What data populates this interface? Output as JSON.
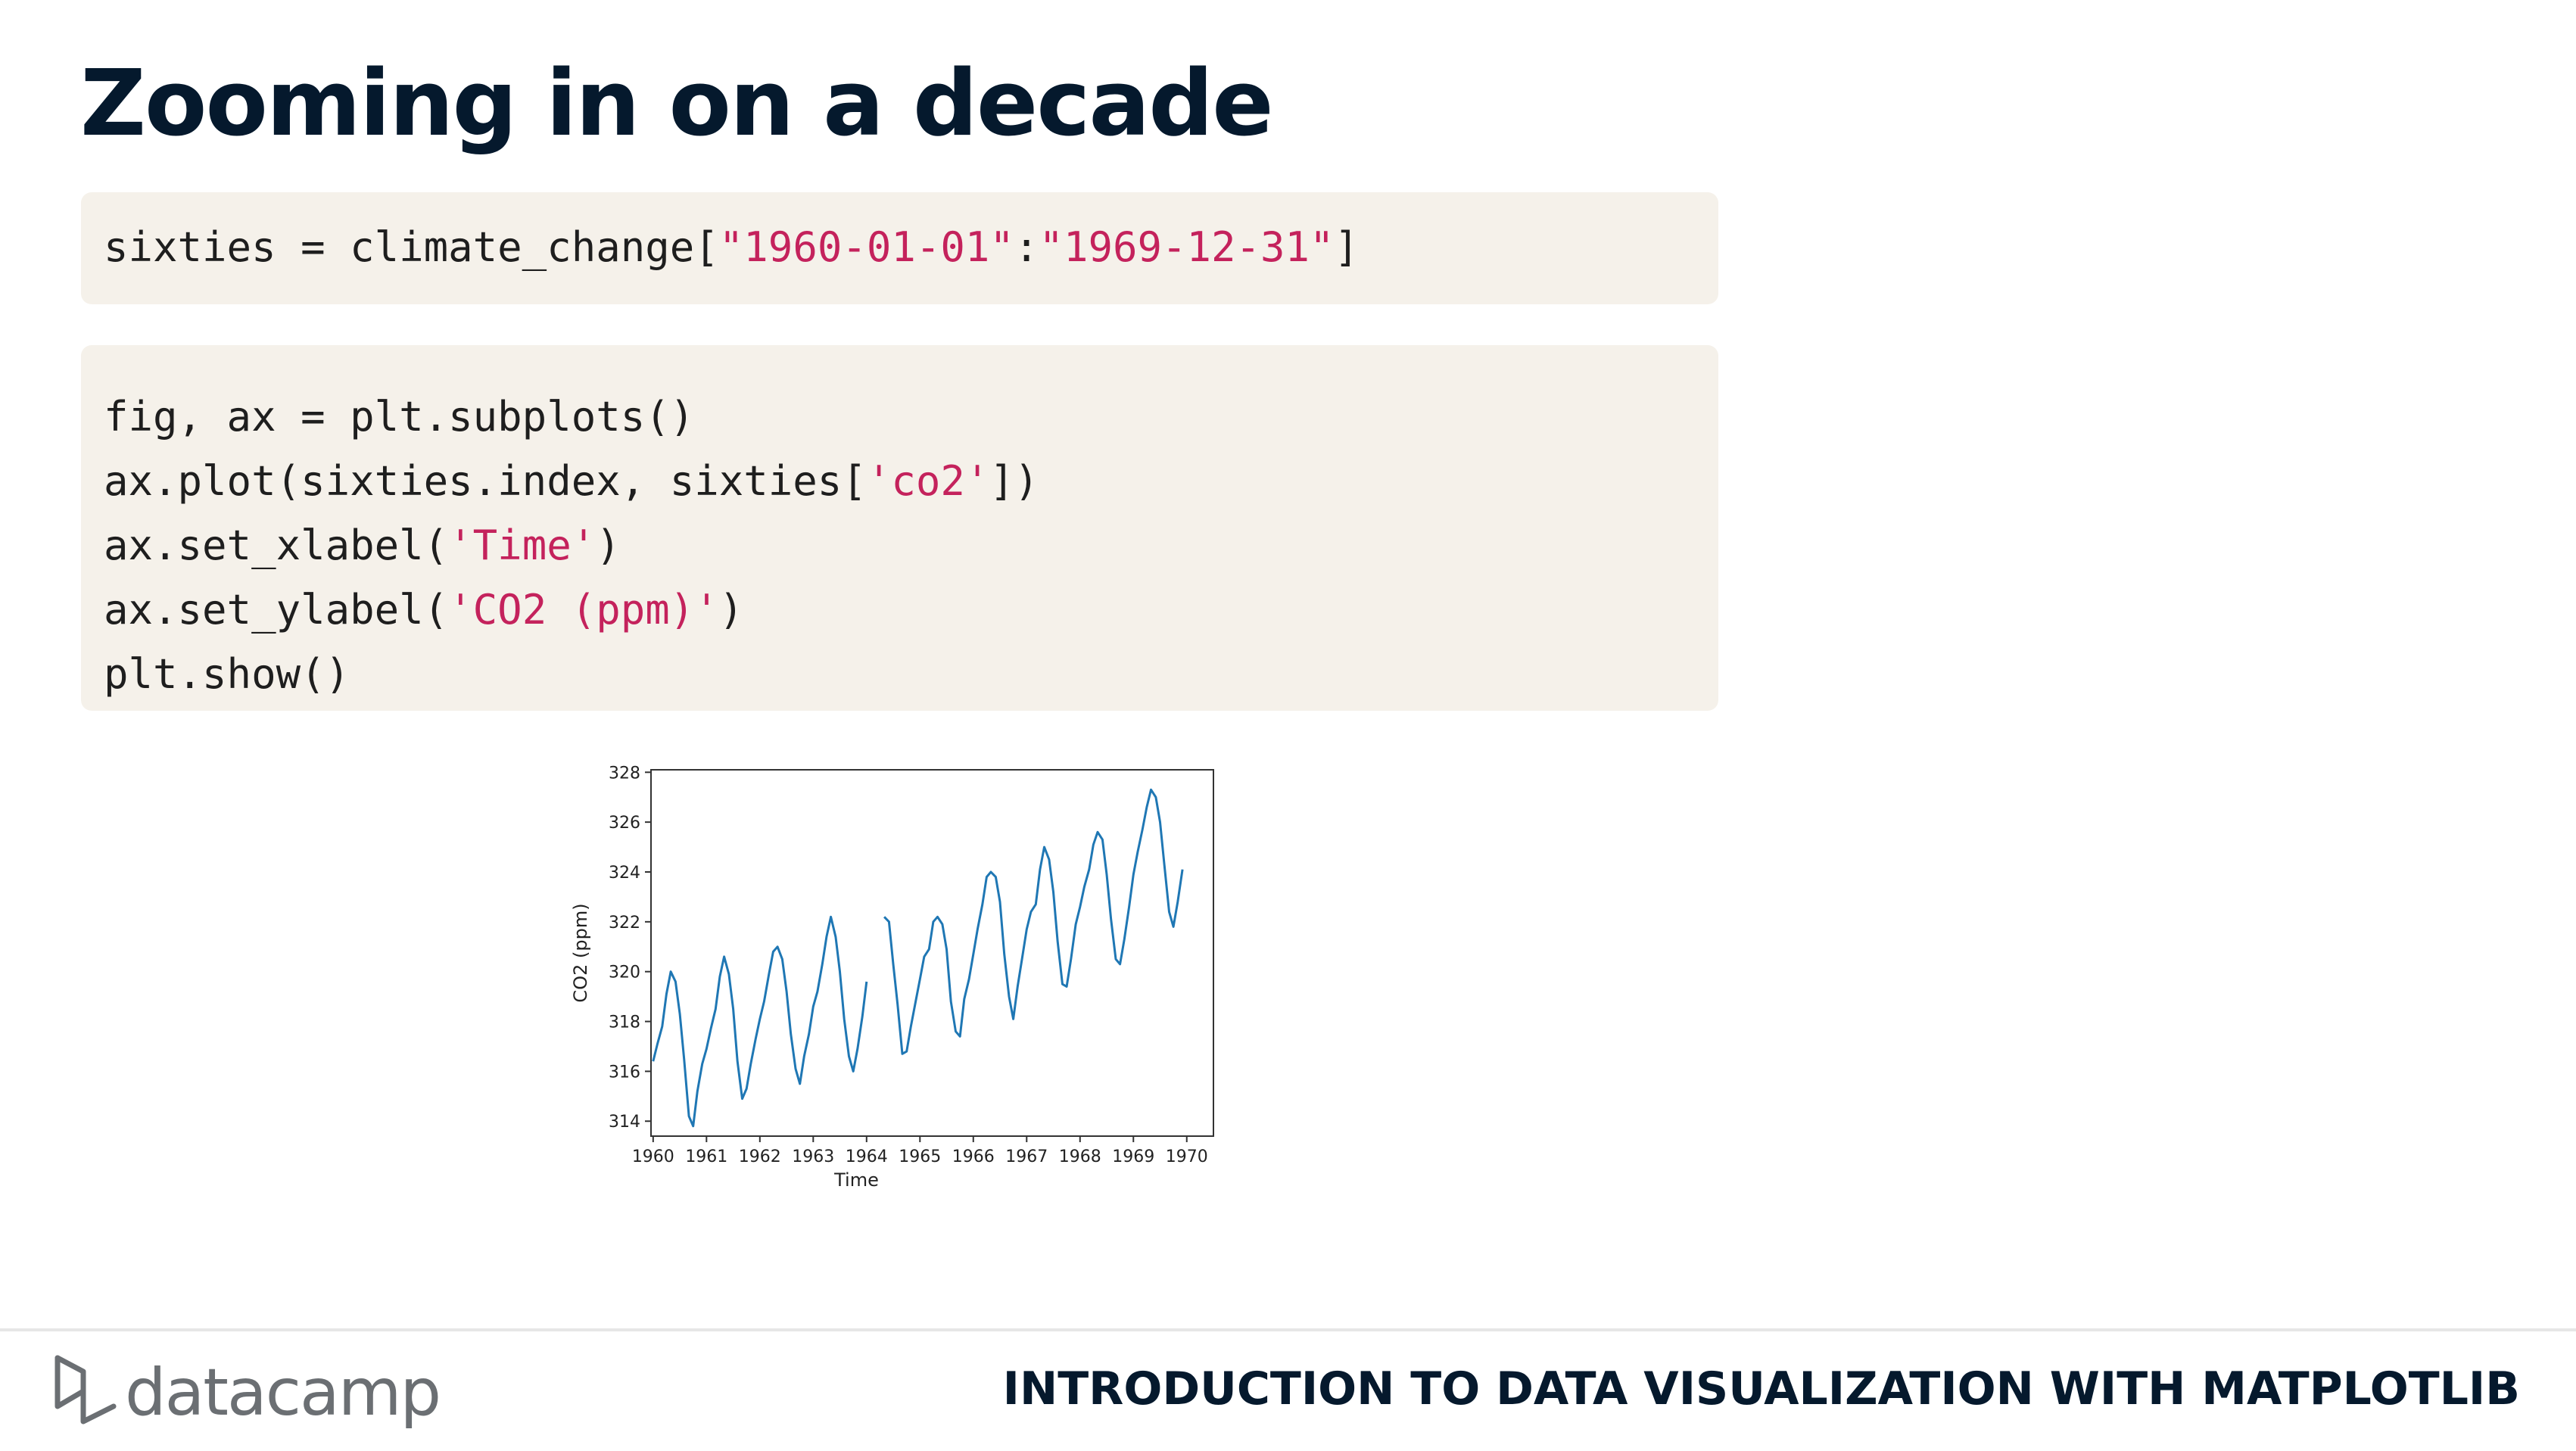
{
  "slide": {
    "title": "Zooming in on a decade",
    "code1": [
      [
        {
          "t": "sixties = climate_change["
        },
        {
          "t": "\"1960-01-01\"",
          "s": 1
        },
        {
          "t": ":"
        },
        {
          "t": "\"1969-12-31\"",
          "s": 1
        },
        {
          "t": "]"
        }
      ]
    ],
    "code2": [
      [
        {
          "t": "fig, ax = plt.subplots()"
        }
      ],
      [
        {
          "t": "ax.plot(sixties.index, sixties["
        },
        {
          "t": "'co2'",
          "s": 1
        },
        {
          "t": "])"
        }
      ],
      [
        {
          "t": "ax.set_xlabel("
        },
        {
          "t": "'Time'",
          "s": 1
        },
        {
          "t": ")"
        }
      ],
      [
        {
          "t": "ax.set_ylabel("
        },
        {
          "t": "'CO2 (ppm)'",
          "s": 1
        },
        {
          "t": ")"
        }
      ],
      [
        {
          "t": "plt.show()"
        }
      ]
    ]
  },
  "footer": {
    "brand": "datacamp",
    "course": "INTRODUCTION TO DATA VISUALIZATION WITH MATPLOTLIB"
  },
  "colors": {
    "title": "#05192d",
    "code_bg": "#f5f1ea",
    "string": "#c4225c",
    "line": "#1f77b4"
  },
  "chart_data": {
    "type": "line",
    "xlabel": "Time",
    "ylabel": "CO2 (ppm)",
    "xlim": [
      1959.96,
      1970.5
    ],
    "ylim": [
      313.4,
      328.1
    ],
    "xticks": [
      1960,
      1961,
      1962,
      1963,
      1964,
      1965,
      1966,
      1967,
      1968,
      1969,
      1970
    ],
    "yticks": [
      314,
      316,
      318,
      320,
      322,
      324,
      326,
      328
    ],
    "series": [
      {
        "x": [
          1960.0,
          1960.08,
          1960.17,
          1960.25,
          1960.33,
          1960.42,
          1960.5,
          1960.58,
          1960.67,
          1960.75,
          1960.83,
          1960.92,
          1961.0,
          1961.08,
          1961.17,
          1961.25,
          1961.33,
          1961.42,
          1961.5,
          1961.58,
          1961.67,
          1961.75,
          1961.83,
          1961.92,
          1962.0,
          1962.08,
          1962.17,
          1962.25,
          1962.33,
          1962.42,
          1962.5,
          1962.58,
          1962.67,
          1962.75,
          1962.83,
          1962.92,
          1963.0,
          1963.08,
          1963.17,
          1963.25,
          1963.33,
          1963.42,
          1963.5,
          1963.58,
          1963.67,
          1963.75,
          1963.83,
          1963.92,
          1964.0,
          null,
          1964.33,
          1964.42,
          1964.5,
          1964.58,
          1964.67,
          1964.75,
          1964.83,
          1964.92,
          1965.0,
          1965.08,
          1965.17,
          1965.25,
          1965.33,
          1965.42,
          1965.5,
          1965.58,
          1965.67,
          1965.75,
          1965.83,
          1965.92,
          1966.0,
          1966.08,
          1966.17,
          1966.25,
          1966.33,
          1966.42,
          1966.5,
          1966.58,
          1966.67,
          1966.75,
          1966.83,
          1966.92,
          1967.0,
          1967.08,
          1967.17,
          1967.25,
          1967.33,
          1967.42,
          1967.5,
          1967.58,
          1967.67,
          1967.75,
          1967.83,
          1967.92,
          1968.0,
          1968.08,
          1968.17,
          1968.25,
          1968.33,
          1968.42,
          1968.5,
          1968.58,
          1968.67,
          1968.75,
          1968.83,
          1968.92,
          1969.0,
          1969.08,
          1969.17,
          1969.25,
          1969.33,
          1969.42,
          1969.5,
          1969.58,
          1969.67,
          1969.75,
          1969.83,
          1969.92
        ],
        "values": [
          316.4,
          317.1,
          317.8,
          319.1,
          320.0,
          319.6,
          318.3,
          316.5,
          314.2,
          313.8,
          315.2,
          316.3,
          316.9,
          317.7,
          318.5,
          319.8,
          320.6,
          319.9,
          318.5,
          316.4,
          314.9,
          315.3,
          316.3,
          317.3,
          318.1,
          318.8,
          319.9,
          320.8,
          321.0,
          320.5,
          319.2,
          317.5,
          316.1,
          315.5,
          316.6,
          317.5,
          318.6,
          319.2,
          320.3,
          321.4,
          322.2,
          321.4,
          320.0,
          318.1,
          316.6,
          316.0,
          316.9,
          318.2,
          319.6,
          null,
          322.2,
          322.0,
          320.3,
          318.7,
          316.7,
          316.8,
          317.8,
          318.8,
          319.7,
          320.6,
          320.9,
          322.0,
          322.2,
          321.9,
          320.9,
          318.8,
          317.6,
          317.4,
          318.9,
          319.7,
          320.7,
          321.7,
          322.7,
          323.8,
          324.0,
          323.8,
          322.8,
          320.7,
          319.0,
          318.1,
          319.4,
          320.6,
          321.7,
          322.4,
          322.7,
          324.1,
          325.0,
          324.5,
          323.2,
          321.2,
          319.5,
          319.4,
          320.5,
          321.9,
          322.6,
          323.4,
          324.1,
          325.1,
          325.6,
          325.3,
          323.9,
          322.1,
          320.5,
          320.3,
          321.3,
          322.6,
          323.9,
          324.8,
          325.7,
          326.6,
          327.3,
          327.0,
          326.0,
          324.3,
          322.4,
          321.8,
          322.8,
          324.1
        ]
      }
    ]
  }
}
